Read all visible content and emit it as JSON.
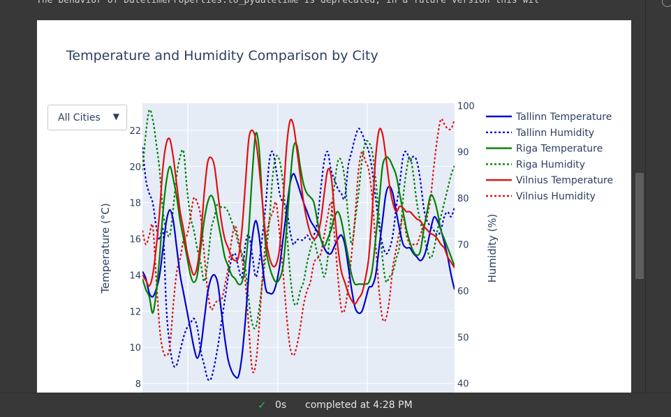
{
  "notebook": {
    "warning_text": "The behavior of DatetimeProperties.to_pydatetime is deprecated, in a future version this wil",
    "status": {
      "elapsed": "0s",
      "message": "completed at 4:28 PM"
    }
  },
  "dropdown": {
    "selected": "All Cities",
    "caret": "▼"
  },
  "colors": {
    "tallinn": "#0000cc",
    "riga": "#008000",
    "vilnius": "#e01010",
    "plot_bg": "#e5ecf6",
    "axis_text": "#2a3f5f"
  },
  "chart_data": {
    "type": "line",
    "title": "Temperature and Humidity Comparison by City",
    "ylabel": "Temperature (°C)",
    "y2label": "Humidity (%)",
    "ylim": [
      7.5,
      23.5
    ],
    "y2lim": [
      38,
      100.5
    ],
    "yticks": [
      8,
      10,
      12,
      14,
      16,
      18,
      20,
      22
    ],
    "y2ticks": [
      40,
      50,
      60,
      70,
      80,
      90,
      100
    ],
    "legend_position": "right",
    "grid": true,
    "series": [
      {
        "name": "Tallinn Temperature",
        "city": "tallinn",
        "axis": "y",
        "dash": false,
        "values": [
          14.2,
          13.8,
          13.0,
          12.8,
          13.2,
          14.0,
          15.5,
          17.0,
          17.6,
          17.0,
          15.5,
          14.0,
          13.0,
          12.0,
          11.0,
          10.0,
          9.4,
          10.0,
          11.5,
          13.0,
          13.8,
          14.0,
          13.5,
          12.0,
          10.5,
          9.3,
          8.7,
          8.4,
          8.4,
          9.5,
          11.5,
          14.0,
          16.0,
          17.0,
          16.2,
          14.5,
          13.2,
          13.0,
          13.0,
          13.5,
          14.5,
          16.0,
          17.5,
          19.0,
          19.6,
          19.2,
          18.6,
          18.0,
          17.5,
          17.0,
          16.7,
          16.4,
          16.0,
          15.5,
          15.2,
          15.2,
          15.6,
          16.0,
          16.2,
          15.7,
          14.5,
          13.2,
          12.2,
          11.9,
          12.0,
          12.6,
          13.3,
          13.4,
          14.0,
          15.5,
          17.0,
          18.5,
          18.9,
          18.5,
          17.5,
          16.5,
          15.7,
          15.5,
          15.5,
          15.2,
          15.0,
          14.8,
          15.0,
          15.6,
          16.5,
          17.2,
          17.0,
          16.5,
          15.8,
          15.0,
          14.0,
          13.2
        ]
      },
      {
        "name": "Tallinn Humidity",
        "city": "tallinn",
        "axis": "y2",
        "dash": true,
        "values": [
          91,
          84,
          81,
          79,
          74,
          71,
          73,
          56,
          48,
          44,
          44,
          47,
          50,
          52,
          53,
          54,
          52,
          47,
          44,
          41,
          41,
          44,
          48,
          53,
          58,
          63,
          67,
          68,
          65,
          63,
          70,
          72,
          68,
          63,
          66,
          72,
          79,
          88,
          90,
          86,
          81,
          79,
          78,
          73,
          70,
          71,
          71,
          71,
          72,
          71,
          72,
          75,
          82,
          88,
          90,
          86,
          84,
          82,
          81,
          80,
          87,
          90,
          93,
          95,
          94,
          92,
          90,
          86,
          80,
          74,
          70,
          68,
          69,
          72,
          78,
          83,
          89,
          90,
          88,
          89,
          88,
          84,
          78,
          75,
          74,
          73,
          72,
          73,
          76,
          77,
          76,
          78
        ]
      },
      {
        "name": "Riga Temperature",
        "city": "riga",
        "axis": "y",
        "dash": false,
        "values": [
          13.8,
          13.2,
          12.8,
          11.9,
          13.0,
          15.0,
          17.5,
          19.2,
          20.0,
          19.3,
          18.3,
          17.0,
          16.0,
          15.0,
          14.0,
          13.6,
          14.0,
          15.5,
          17.0,
          18.0,
          18.4,
          18.0,
          17.0,
          16.0,
          15.0,
          14.5,
          14.0,
          13.8,
          13.5,
          13.6,
          14.5,
          16.5,
          19.5,
          21.8,
          21.0,
          18.0,
          15.5,
          14.5,
          13.9,
          13.6,
          13.8,
          14.5,
          16.5,
          19.0,
          21.0,
          21.2,
          20.0,
          19.0,
          18.5,
          18.3,
          18.0,
          17.0,
          16.0,
          15.6,
          16.0,
          16.5,
          17.2,
          17.5,
          17.0,
          16.0,
          15.0,
          14.0,
          13.5,
          13.5,
          13.5,
          13.5,
          13.6,
          14.3,
          16.0,
          18.0,
          20.0,
          20.5,
          20.4,
          20.0,
          19.5,
          18.5,
          17.5,
          16.5,
          15.8,
          15.3,
          15.1,
          15.3,
          16.5,
          17.5,
          18.4,
          18.2,
          17.5,
          16.5,
          16.0,
          15.5,
          15.0,
          14.5
        ]
      },
      {
        "name": "Riga Humidity",
        "city": "riga",
        "axis": "y2",
        "dash": true,
        "values": [
          86,
          94,
          99,
          97,
          92,
          86,
          77,
          73,
          72,
          78,
          85,
          89,
          90,
          82,
          76,
          73,
          69,
          66,
          62,
          66,
          73,
          76,
          79,
          78,
          78,
          77,
          75,
          73,
          70,
          68,
          65,
          58,
          53,
          52,
          56,
          62,
          68,
          75,
          85,
          89,
          88,
          83,
          74,
          64,
          58,
          57,
          60,
          62,
          66,
          69,
          71,
          68,
          66,
          63,
          67,
          76,
          83,
          88,
          88,
          84,
          76,
          70,
          75,
          81,
          88,
          92,
          92,
          90,
          84,
          76,
          67,
          62,
          63,
          64,
          67,
          70,
          80,
          86,
          89,
          85,
          79,
          75,
          72,
          69,
          67,
          69,
          73,
          76,
          79,
          82,
          85,
          87
        ]
      },
      {
        "name": "Vilnius Temperature",
        "city": "vilnius",
        "axis": "y",
        "dash": false,
        "values": [
          14.0,
          13.7,
          13.4,
          14.0,
          15.5,
          17.5,
          20.0,
          21.3,
          21.5,
          20.5,
          19.0,
          17.5,
          16.5,
          15.3,
          14.5,
          14.0,
          14.5,
          16.0,
          18.5,
          20.2,
          20.5,
          20.0,
          18.5,
          17.0,
          16.0,
          15.5,
          15.0,
          14.8,
          15.0,
          16.5,
          19.0,
          21.5,
          22.0,
          21.5,
          20.0,
          18.0,
          16.0,
          15.0,
          14.5,
          14.6,
          15.5,
          18.0,
          21.0,
          22.5,
          22.3,
          21.0,
          19.5,
          18.0,
          17.0,
          16.3,
          16.0,
          16.2,
          17.0,
          18.5,
          19.8,
          19.5,
          17.5,
          15.5,
          14.2,
          13.6,
          13.0,
          12.6,
          12.4,
          12.7,
          13.0,
          13.8,
          15.0,
          17.5,
          20.5,
          22.0,
          21.8,
          20.5,
          19.0,
          18.0,
          17.5,
          17.8,
          17.7,
          17.5,
          17.5,
          17.3,
          17.1,
          17.0,
          16.7,
          16.5,
          16.3,
          16.2,
          16.0,
          15.7,
          15.5,
          15.0,
          14.7,
          14.4
        ]
      },
      {
        "name": "Vilnius Humidity",
        "city": "vilnius",
        "axis": "y2",
        "dash": true,
        "values": [
          73,
          70,
          72,
          74,
          63,
          52,
          47,
          46,
          48,
          57,
          64,
          67,
          71,
          72,
          76,
          80,
          79,
          76,
          68,
          60,
          56,
          57,
          58,
          58,
          61,
          65,
          71,
          74,
          71,
          67,
          62,
          52,
          43,
          44,
          52,
          63,
          71,
          75,
          77,
          79,
          72,
          64,
          55,
          48,
          46,
          48,
          52,
          57,
          60,
          62,
          66,
          67,
          68,
          72,
          76,
          79,
          72,
          63,
          56,
          56,
          61,
          68,
          76,
          86,
          90,
          88,
          86,
          80,
          70,
          60,
          54,
          54,
          58,
          65,
          69,
          73,
          76,
          72,
          70,
          70,
          70,
          72,
          74,
          76,
          80,
          87,
          93,
          97,
          96,
          95,
          95,
          97
        ]
      }
    ]
  }
}
